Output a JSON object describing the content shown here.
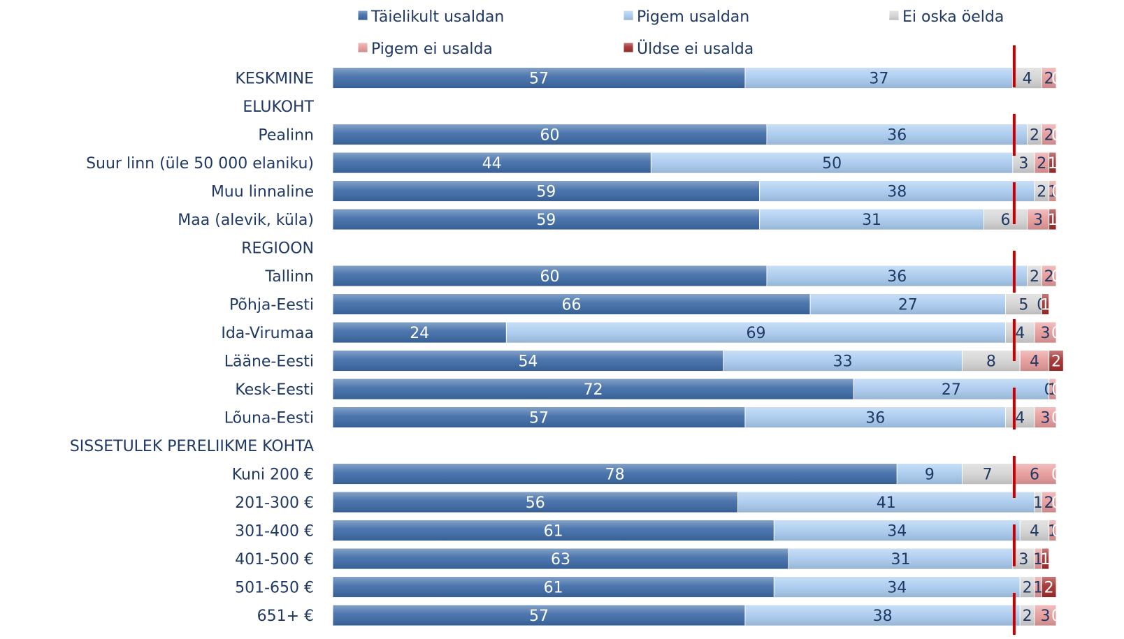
{
  "chart_data": {
    "type": "bar",
    "orientation": "horizontal",
    "stacked": true,
    "legend_position": "top",
    "categories": [
      "KESKMINE",
      "ELUKOHT",
      "Pealinn",
      "Suur linn (üle 50 000 elaniku)",
      "Muu linnaline",
      "Maa (alevik, küla)",
      "REGIOON",
      "Tallinn",
      "Põhja-Eesti",
      "Ida-Virumaa",
      "Lääne-Eesti",
      "Kesk-Eesti",
      "Lõuna-Eesti",
      "SISSETULEK PERELIIKME KOHTA",
      "Kuni 200 €",
      "201-300 €",
      "301-400 €",
      "401-500 €",
      "501-650 €",
      "651+ €"
    ],
    "series": [
      {
        "name": "Täielikult usaldan",
        "color": "#3c6aa6",
        "label_color": "#ffffff",
        "values": [
          57,
          null,
          60,
          44,
          59,
          59,
          null,
          60,
          66,
          24,
          54,
          72,
          57,
          null,
          78,
          56,
          61,
          63,
          61,
          57
        ]
      },
      {
        "name": "Pigem usaldan",
        "color": "#a9cbef",
        "label_color": "#1f3864",
        "values": [
          37,
          null,
          36,
          50,
          38,
          31,
          null,
          36,
          27,
          69,
          33,
          27,
          36,
          null,
          9,
          41,
          34,
          31,
          34,
          38
        ]
      },
      {
        "name": "Ei oska öelda",
        "color": "#d4d4d4",
        "label_color": "#1f3864",
        "values": [
          4,
          null,
          2,
          3,
          2,
          6,
          null,
          2,
          5,
          4,
          8,
          0,
          4,
          null,
          7,
          1,
          4,
          3,
          2,
          2
        ]
      },
      {
        "name": "Pigem ei usalda",
        "color": "#e79a9a",
        "label_color": "#1f3864",
        "values": [
          2,
          null,
          2,
          2,
          1,
          3,
          null,
          2,
          0,
          3,
          4,
          1,
          3,
          null,
          6,
          2,
          1,
          1,
          1,
          3
        ]
      },
      {
        "name": "Üldse ei usalda",
        "color": "#a22b2b",
        "label_color": "#ffffff",
        "values": [
          0,
          null,
          0,
          1,
          0,
          1,
          null,
          0,
          1,
          0,
          2,
          0,
          0,
          null,
          0,
          0,
          0,
          1,
          2,
          0
        ]
      }
    ],
    "xlim": [
      0,
      100
    ],
    "reference_line": {
      "color": "#cc0000",
      "value": 94
    }
  }
}
